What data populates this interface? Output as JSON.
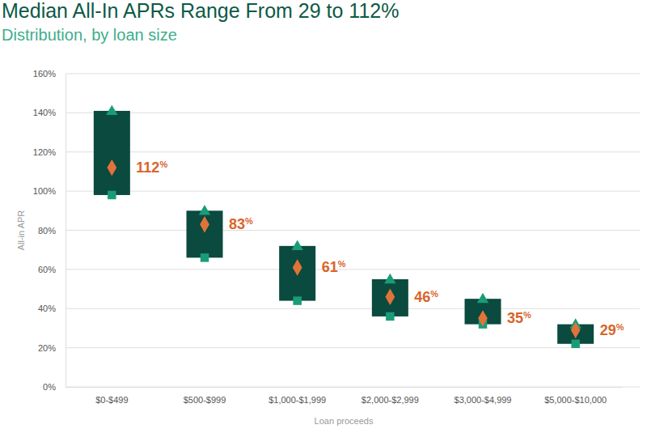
{
  "chart_data": {
    "type": "range",
    "title": "Median All-In APRs Range From 29 to 112%",
    "subtitle": "Distribution, by loan size",
    "x_label": "Loan proceeds",
    "y_label": "All-in APR",
    "categories": [
      "$0-$499",
      "$500-$999",
      "$1,000-$1,999",
      "$2,000-$2,999",
      "$3,000-$4,999",
      "$5,000-$10,000"
    ],
    "values": [
      112,
      83,
      61,
      46,
      35,
      29
    ],
    "value_labels": [
      "112%",
      "83%",
      "61%",
      "46%",
      "35%",
      "29%"
    ],
    "low": [
      98,
      66,
      44,
      36,
      32,
      22
    ],
    "high": [
      141,
      90,
      72,
      55,
      45,
      32
    ],
    "color": "#0b4a3e",
    "marker": "diamond",
    "data_labels": true,
    "grid": true,
    "ylim": [
      0,
      160
    ],
    "yticks": [
      {
        "value": 0,
        "label": "0%"
      },
      {
        "value": 20,
        "label": "20%"
      },
      {
        "value": 40,
        "label": "40%"
      },
      {
        "value": 60,
        "label": "60%"
      },
      {
        "value": 80,
        "label": "80%"
      },
      {
        "value": 100,
        "label": "100%"
      },
      {
        "value": 120,
        "label": "120%"
      },
      {
        "value": 140,
        "label": "140%"
      },
      {
        "value": 160,
        "label": "160%"
      }
    ]
  }
}
